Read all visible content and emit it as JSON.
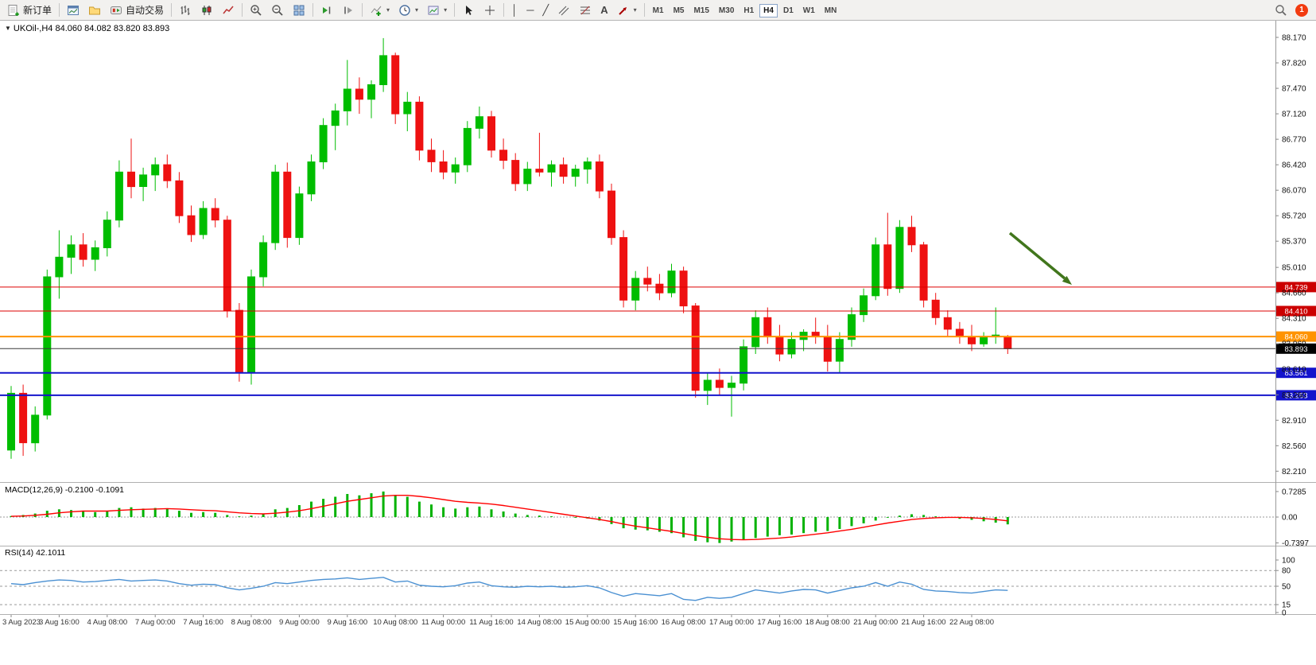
{
  "toolbar": {
    "new_order_label": "新订单",
    "auto_trading_label": "自动交易",
    "timeframes": [
      "M1",
      "M5",
      "M15",
      "M30",
      "H1",
      "H4",
      "D1",
      "W1",
      "MN"
    ],
    "active_timeframe": "H4",
    "notification_badge": "1"
  },
  "icons": {
    "symbol_marker": "▼",
    "vertical_line": "│",
    "horizontal_line": "─",
    "trendline": "╱",
    "text_tool": "A",
    "dropdown_chevron": "▾"
  },
  "panels": {
    "main_caption": "UKOil-,H4 84.060 84.082 83.820 83.893",
    "macd_caption": "MACD(12,26,9) -0.2100 -0.1091",
    "rsi_caption": "RSI(14) 42.1011"
  },
  "colors": {
    "bull": "#00bd00",
    "bear": "#ee1111",
    "macd_hist": "#00b200",
    "macd_signal": "#ff0000",
    "rsi_line": "#4a90d2",
    "line_red": "#dd0000",
    "line_orange": "#ff9301",
    "line_blue": "#1414cc",
    "bid_line": "#3a3a3a",
    "bid_tag_bg": "#000000",
    "arrow": "#41761c",
    "axis_text": "#111111"
  },
  "chart_data": {
    "type": "candlestick",
    "symbol": "UKOil-",
    "timeframe": "H4",
    "current_bar": {
      "open": 84.06,
      "high": 84.082,
      "low": 83.82,
      "close": 83.893
    },
    "y_ticks": [
      "88.170",
      "87.820",
      "87.470",
      "87.120",
      "86.770",
      "86.420",
      "86.070",
      "85.720",
      "85.370",
      "85.010",
      "84.660",
      "84.310",
      "83.960",
      "83.610",
      "83.260",
      "82.910",
      "82.560",
      "82.210"
    ],
    "time_labels": [
      "3 Aug 2023",
      "3 Aug 16:00",
      "4 Aug 08:00",
      "7 Aug 00:00",
      "7 Aug 16:00",
      "8 Aug 08:00",
      "9 Aug 00:00",
      "9 Aug 16:00",
      "10 Aug 08:00",
      "11 Aug 00:00",
      "11 Aug 16:00",
      "14 Aug 08:00",
      "15 Aug 00:00",
      "15 Aug 16:00",
      "16 Aug 08:00",
      "17 Aug 00:00",
      "17 Aug 16:00",
      "18 Aug 08:00",
      "21 Aug 00:00",
      "21 Aug 16:00",
      "22 Aug 08:00"
    ],
    "label_every_n_candles": 4,
    "ohlc": [
      [
        82.5,
        83.38,
        82.38,
        83.28
      ],
      [
        83.28,
        83.4,
        82.42,
        82.6
      ],
      [
        82.6,
        83.1,
        82.48,
        82.98
      ],
      [
        82.98,
        84.98,
        82.92,
        84.88
      ],
      [
        84.88,
        85.52,
        84.58,
        85.15
      ],
      [
        85.15,
        85.45,
        84.92,
        85.32
      ],
      [
        85.32,
        85.48,
        85.02,
        85.12
      ],
      [
        85.12,
        85.38,
        84.96,
        85.28
      ],
      [
        85.28,
        85.78,
        85.16,
        85.66
      ],
      [
        85.66,
        86.48,
        85.56,
        86.32
      ],
      [
        86.32,
        86.78,
        85.96,
        86.12
      ],
      [
        86.12,
        86.38,
        85.92,
        86.28
      ],
      [
        86.28,
        86.52,
        86.06,
        86.42
      ],
      [
        86.42,
        86.56,
        86.1,
        86.2
      ],
      [
        86.2,
        86.32,
        85.62,
        85.72
      ],
      [
        85.72,
        85.86,
        85.36,
        85.46
      ],
      [
        85.46,
        85.92,
        85.4,
        85.82
      ],
      [
        85.82,
        85.96,
        85.56,
        85.66
      ],
      [
        85.66,
        85.72,
        84.32,
        84.42
      ],
      [
        84.42,
        84.52,
        83.44,
        83.56
      ],
      [
        83.56,
        84.98,
        83.4,
        84.88
      ],
      [
        84.88,
        85.45,
        84.75,
        85.35
      ],
      [
        85.35,
        86.42,
        85.25,
        86.32
      ],
      [
        86.32,
        86.45,
        85.28,
        85.42
      ],
      [
        85.42,
        86.12,
        85.32,
        86.02
      ],
      [
        86.02,
        86.56,
        85.92,
        86.46
      ],
      [
        86.46,
        87.06,
        86.36,
        86.96
      ],
      [
        86.96,
        87.26,
        86.62,
        87.16
      ],
      [
        87.16,
        87.86,
        86.96,
        87.46
      ],
      [
        87.46,
        87.62,
        87.12,
        87.32
      ],
      [
        87.32,
        87.58,
        87.06,
        87.52
      ],
      [
        87.52,
        88.16,
        87.42,
        87.92
      ],
      [
        87.92,
        87.96,
        86.98,
        87.12
      ],
      [
        87.12,
        87.42,
        86.88,
        87.28
      ],
      [
        87.28,
        87.36,
        86.48,
        86.62
      ],
      [
        86.62,
        86.78,
        86.32,
        86.46
      ],
      [
        86.46,
        86.62,
        86.22,
        86.32
      ],
      [
        86.32,
        86.52,
        86.16,
        86.42
      ],
      [
        86.42,
        87.02,
        86.32,
        86.92
      ],
      [
        86.92,
        87.22,
        86.78,
        87.08
      ],
      [
        87.08,
        87.16,
        86.52,
        86.62
      ],
      [
        86.62,
        86.78,
        86.36,
        86.48
      ],
      [
        86.48,
        86.58,
        86.06,
        86.16
      ],
      [
        86.16,
        86.46,
        86.06,
        86.36
      ],
      [
        86.36,
        86.86,
        86.26,
        86.32
      ],
      [
        86.32,
        86.48,
        86.12,
        86.42
      ],
      [
        86.42,
        86.52,
        86.16,
        86.26
      ],
      [
        86.26,
        86.42,
        86.12,
        86.36
      ],
      [
        86.36,
        86.52,
        86.16,
        86.46
      ],
      [
        86.46,
        86.56,
        85.96,
        86.06
      ],
      [
        86.06,
        86.16,
        85.32,
        85.42
      ],
      [
        85.42,
        85.52,
        84.46,
        84.56
      ],
      [
        84.56,
        84.96,
        84.42,
        84.86
      ],
      [
        84.86,
        85.02,
        84.68,
        84.78
      ],
      [
        84.78,
        84.92,
        84.56,
        84.66
      ],
      [
        84.66,
        85.06,
        84.6,
        84.96
      ],
      [
        84.96,
        85.02,
        84.38,
        84.48
      ],
      [
        84.48,
        84.52,
        83.22,
        83.32
      ],
      [
        83.32,
        83.56,
        83.12,
        83.46
      ],
      [
        83.46,
        83.62,
        83.26,
        83.36
      ],
      [
        83.36,
        83.52,
        82.96,
        83.42
      ],
      [
        83.42,
        84.02,
        83.32,
        83.92
      ],
      [
        83.92,
        84.42,
        83.82,
        84.32
      ],
      [
        84.32,
        84.46,
        83.96,
        84.06
      ],
      [
        84.06,
        84.22,
        83.72,
        83.82
      ],
      [
        83.82,
        84.12,
        83.76,
        84.02
      ],
      [
        84.02,
        84.16,
        83.86,
        84.12
      ],
      [
        84.12,
        84.32,
        83.96,
        84.06
      ],
      [
        84.06,
        84.22,
        83.58,
        83.72
      ],
      [
        83.72,
        84.12,
        83.56,
        84.02
      ],
      [
        84.02,
        84.46,
        83.92,
        84.36
      ],
      [
        84.36,
        84.72,
        84.26,
        84.62
      ],
      [
        84.62,
        85.42,
        84.56,
        85.32
      ],
      [
        85.32,
        85.76,
        84.62,
        84.72
      ],
      [
        84.72,
        85.66,
        84.66,
        85.56
      ],
      [
        85.56,
        85.72,
        85.22,
        85.32
      ],
      [
        85.32,
        85.36,
        84.46,
        84.56
      ],
      [
        84.56,
        84.66,
        84.22,
        84.32
      ],
      [
        84.32,
        84.42,
        84.06,
        84.16
      ],
      [
        84.16,
        84.26,
        83.96,
        84.06
      ],
      [
        84.06,
        84.22,
        83.86,
        83.96
      ],
      [
        83.96,
        84.12,
        83.92,
        84.06
      ],
      [
        84.06,
        84.46,
        83.96,
        84.08
      ],
      [
        84.06,
        84.082,
        83.82,
        83.893
      ]
    ],
    "price_lines": [
      {
        "price": 84.739,
        "label": "84.739",
        "color": "#dd0000",
        "width": 1,
        "tag_bg": "#cc0000"
      },
      {
        "price": 84.41,
        "label": "84.410",
        "color": "#dd0000",
        "width": 1,
        "tag_bg": "#cc0000"
      },
      {
        "price": 84.06,
        "label": "84.060",
        "color": "#ff9301",
        "width": 2,
        "tag_bg": "#ff9301"
      },
      {
        "price": 83.893,
        "label": "83.893",
        "color": "#3a3a3a",
        "width": 1,
        "tag_bg": "#000000"
      },
      {
        "price": 83.561,
        "label": "83.561",
        "color": "#1414cc",
        "width": 2,
        "tag_bg": "#1414cc"
      },
      {
        "price": 83.253,
        "label": "83.253",
        "color": "#1414cc",
        "width": 2,
        "tag_bg": "#1414cc"
      }
    ],
    "indicators": {
      "macd": {
        "params": "12,26,9",
        "values_text": "-0.2100 -0.1091",
        "y_ticks": [
          "0.7285",
          "0.00",
          "-0.7397"
        ],
        "histogram": [
          0.03,
          0.06,
          0.1,
          0.18,
          0.22,
          0.2,
          0.16,
          0.14,
          0.18,
          0.26,
          0.28,
          0.24,
          0.26,
          0.24,
          0.18,
          0.12,
          0.14,
          0.12,
          0.06,
          0.02,
          0.04,
          0.1,
          0.22,
          0.26,
          0.34,
          0.44,
          0.52,
          0.58,
          0.66,
          0.62,
          0.68,
          0.73,
          0.62,
          0.58,
          0.44,
          0.36,
          0.28,
          0.24,
          0.28,
          0.3,
          0.22,
          0.16,
          0.1,
          0.06,
          0.04,
          0.02,
          0.0,
          -0.02,
          -0.04,
          -0.1,
          -0.2,
          -0.32,
          -0.36,
          -0.38,
          -0.42,
          -0.46,
          -0.58,
          -0.68,
          -0.72,
          -0.74,
          -0.7,
          -0.66,
          -0.6,
          -0.56,
          -0.52,
          -0.5,
          -0.46,
          -0.42,
          -0.4,
          -0.34,
          -0.26,
          -0.18,
          -0.1,
          -0.02,
          0.04,
          0.08,
          0.06,
          0.02,
          -0.02,
          -0.05,
          -0.08,
          -0.12,
          -0.16,
          -0.21
        ],
        "signal": [
          0.02,
          0.03,
          0.05,
          0.08,
          0.12,
          0.15,
          0.17,
          0.17,
          0.17,
          0.19,
          0.21,
          0.22,
          0.23,
          0.24,
          0.23,
          0.21,
          0.19,
          0.18,
          0.15,
          0.12,
          0.1,
          0.09,
          0.11,
          0.14,
          0.18,
          0.24,
          0.31,
          0.38,
          0.45,
          0.5,
          0.55,
          0.6,
          0.62,
          0.62,
          0.59,
          0.55,
          0.5,
          0.45,
          0.42,
          0.4,
          0.37,
          0.33,
          0.28,
          0.23,
          0.18,
          0.13,
          0.08,
          0.03,
          -0.02,
          -0.07,
          -0.13,
          -0.2,
          -0.26,
          -0.31,
          -0.36,
          -0.41,
          -0.47,
          -0.53,
          -0.58,
          -0.62,
          -0.64,
          -0.65,
          -0.64,
          -0.62,
          -0.6,
          -0.57,
          -0.53,
          -0.49,
          -0.45,
          -0.4,
          -0.35,
          -0.29,
          -0.23,
          -0.17,
          -0.12,
          -0.07,
          -0.04,
          -0.02,
          -0.01,
          -0.01,
          -0.02,
          -0.04,
          -0.07,
          -0.11
        ]
      },
      "rsi": {
        "period": 14,
        "value_text": "42.1011",
        "y_ticks": [
          "100",
          "80",
          "50",
          "15",
          "0"
        ],
        "levels": [
          80,
          50,
          15
        ],
        "values": [
          55,
          53,
          57,
          60,
          62,
          61,
          58,
          59,
          61,
          63,
          60,
          61,
          62,
          60,
          55,
          52,
          54,
          53,
          47,
          43,
          46,
          50,
          57,
          55,
          58,
          61,
          63,
          64,
          66,
          63,
          65,
          67,
          58,
          60,
          52,
          50,
          49,
          51,
          56,
          58,
          51,
          49,
          48,
          50,
          49,
          50,
          48,
          49,
          51,
          47,
          38,
          31,
          36,
          34,
          32,
          36,
          25,
          23,
          29,
          27,
          29,
          36,
          43,
          40,
          37,
          41,
          44,
          43,
          37,
          42,
          47,
          50,
          57,
          50,
          58,
          54,
          44,
          41,
          40,
          38,
          37,
          40,
          43,
          42.1
        ]
      }
    }
  }
}
